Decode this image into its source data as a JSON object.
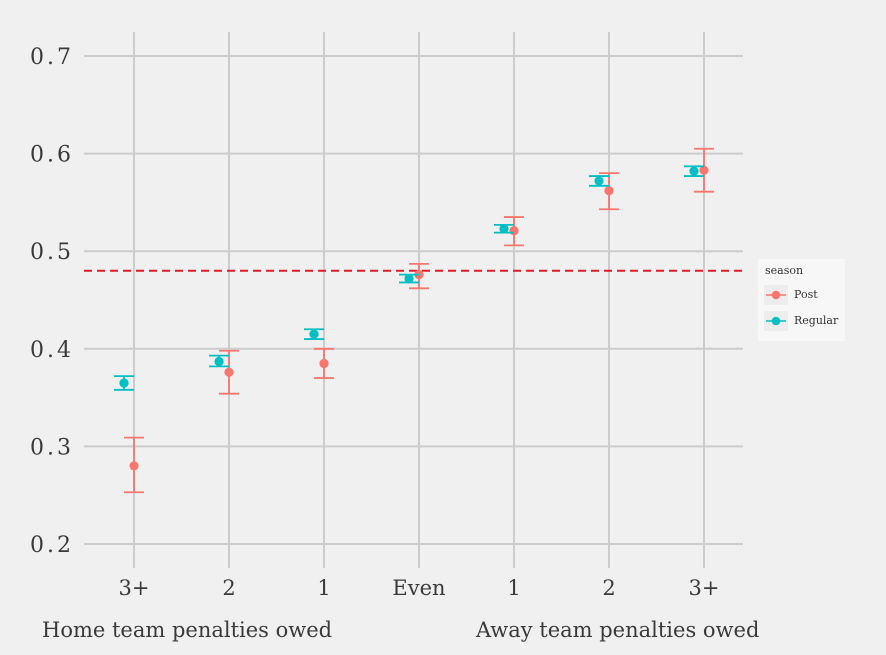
{
  "chart_data": {
    "type": "scatter",
    "subtype": "point-range",
    "title": "",
    "xlabel_left": "Home team penalties owed",
    "xlabel_right": "Away team penalties owed",
    "ylabel": "",
    "categories": [
      "3+",
      "2",
      "1",
      "Even",
      "1",
      "2",
      "3+"
    ],
    "yticks": [
      "0.7",
      "0.6",
      "0.5",
      "0.4",
      "0.3",
      "0.2"
    ],
    "ytick_values": [
      0.7,
      0.6,
      0.5,
      0.4,
      0.3,
      0.2
    ],
    "ylim": [
      0.18,
      0.73
    ],
    "grid": true,
    "reference_line": {
      "y": 0.48,
      "style": "dashed",
      "color": "#dd1c2a"
    },
    "legend": {
      "title": "season",
      "placement": "right"
    },
    "series": [
      {
        "name": "Post",
        "color": "#f8766d",
        "values": [
          0.28,
          0.376,
          0.385,
          0.476,
          0.521,
          0.562,
          0.583
        ],
        "lower": [
          0.253,
          0.354,
          0.37,
          0.462,
          0.506,
          0.543,
          0.561
        ],
        "upper": [
          0.309,
          0.398,
          0.4,
          0.487,
          0.535,
          0.58,
          0.605
        ]
      },
      {
        "name": "Regular",
        "color": "#00bfc4",
        "values": [
          0.365,
          0.387,
          0.415,
          0.472,
          0.523,
          0.572,
          0.582
        ],
        "lower": [
          0.358,
          0.382,
          0.41,
          0.468,
          0.519,
          0.567,
          0.577
        ],
        "upper": [
          0.372,
          0.393,
          0.42,
          0.476,
          0.527,
          0.577,
          0.587
        ]
      }
    ]
  }
}
